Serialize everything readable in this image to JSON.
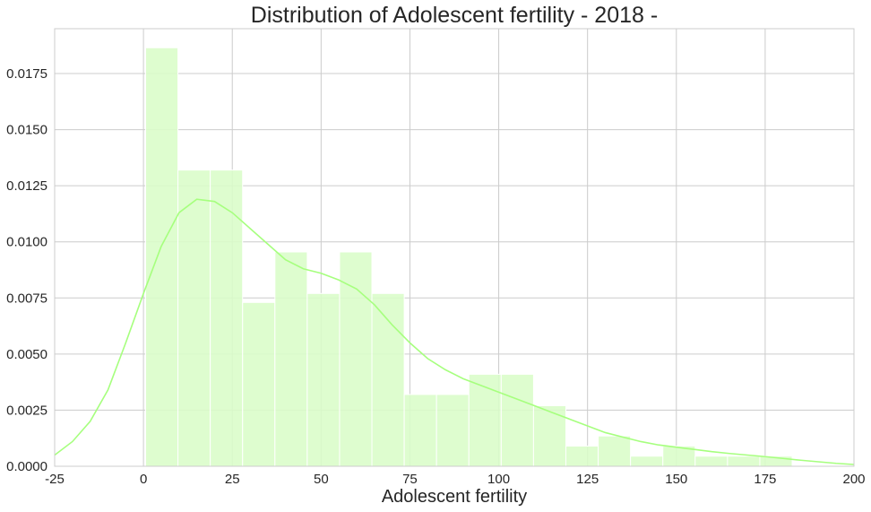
{
  "chart_data": {
    "type": "histogram",
    "title": "Distribution of Adolescent fertility - 2018 -",
    "xlabel": "Adolescent fertility",
    "ylabel": "",
    "xlim": [
      -25,
      200
    ],
    "ylim": [
      0,
      0.0195
    ],
    "grid": true,
    "colors": {
      "bar": "#d9fdc8",
      "kde": "#a6ff7e",
      "grid": "#cccccc"
    },
    "x_ticks": [
      "-25",
      "0",
      "25",
      "50",
      "75",
      "100",
      "125",
      "150",
      "175",
      "200"
    ],
    "x_tick_values": [
      -25,
      0,
      25,
      50,
      75,
      100,
      125,
      150,
      175,
      200
    ],
    "y_ticks": [
      "0.0000",
      "0.0025",
      "0.0050",
      "0.0075",
      "0.0100",
      "0.0125",
      "0.0150",
      "0.0175"
    ],
    "y_tick_values": [
      0,
      0.0025,
      0.005,
      0.0075,
      0.01,
      0.0125,
      0.015,
      0.0175
    ],
    "bins": [
      {
        "x0": 0.6,
        "x1": 9.7,
        "density": 0.01865
      },
      {
        "x0": 9.7,
        "x1": 18.8,
        "density": 0.0132
      },
      {
        "x0": 18.8,
        "x1": 27.9,
        "density": 0.0132
      },
      {
        "x0": 27.9,
        "x1": 37.0,
        "density": 0.0073
      },
      {
        "x0": 37.0,
        "x1": 46.1,
        "density": 0.00955
      },
      {
        "x0": 46.1,
        "x1": 55.2,
        "density": 0.0077
      },
      {
        "x0": 55.2,
        "x1": 64.3,
        "density": 0.00955
      },
      {
        "x0": 64.3,
        "x1": 73.4,
        "density": 0.0077
      },
      {
        "x0": 73.4,
        "x1": 82.5,
        "density": 0.0032
      },
      {
        "x0": 82.5,
        "x1": 91.6,
        "density": 0.0032
      },
      {
        "x0": 91.6,
        "x1": 100.7,
        "density": 0.0041
      },
      {
        "x0": 100.7,
        "x1": 109.8,
        "density": 0.0041
      },
      {
        "x0": 109.8,
        "x1": 118.9,
        "density": 0.0027
      },
      {
        "x0": 118.9,
        "x1": 128.0,
        "density": 0.0009
      },
      {
        "x0": 128.0,
        "x1": 137.1,
        "density": 0.00135
      },
      {
        "x0": 137.1,
        "x1": 146.2,
        "density": 0.00045
      },
      {
        "x0": 146.2,
        "x1": 155.3,
        "density": 0.0009
      },
      {
        "x0": 155.3,
        "x1": 164.4,
        "density": 0.00045
      },
      {
        "x0": 164.4,
        "x1": 173.5,
        "density": 0.00045
      },
      {
        "x0": 173.5,
        "x1": 182.6,
        "density": 0.00045
      }
    ],
    "kde": {
      "x": [
        -25,
        -20,
        -15,
        -10,
        -5,
        0,
        5,
        10,
        15,
        20,
        25,
        30,
        35,
        40,
        45,
        50,
        55,
        60,
        65,
        70,
        75,
        80,
        85,
        90,
        95,
        100,
        105,
        110,
        115,
        120,
        125,
        130,
        135,
        140,
        145,
        150,
        155,
        160,
        165,
        170,
        175,
        180,
        185,
        190,
        195,
        200
      ],
      "y": [
        0.0005,
        0.0011,
        0.002,
        0.0034,
        0.0055,
        0.0077,
        0.0098,
        0.0113,
        0.0119,
        0.0118,
        0.0113,
        0.0106,
        0.0099,
        0.0092,
        0.0088,
        0.0086,
        0.0083,
        0.0079,
        0.0072,
        0.0063,
        0.0055,
        0.0048,
        0.0043,
        0.0039,
        0.0036,
        0.0033,
        0.003,
        0.0027,
        0.0024,
        0.0021,
        0.0018,
        0.0015,
        0.0013,
        0.0011,
        0.00095,
        0.00085,
        0.00075,
        0.00065,
        0.00057,
        0.0005,
        0.00043,
        0.00035,
        0.00027,
        0.0002,
        0.00013,
        8e-05
      ]
    }
  }
}
